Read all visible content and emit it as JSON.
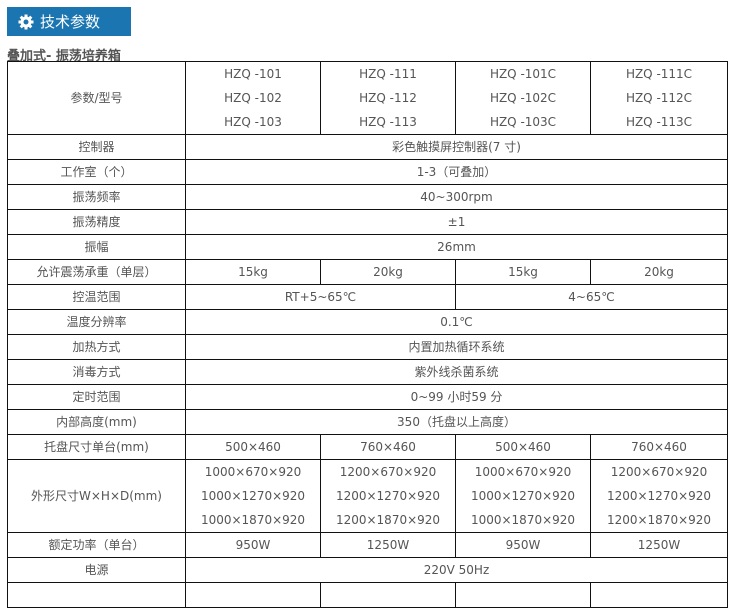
{
  "banner": {
    "title": "技术参数",
    "icon": "gear-icon",
    "color": "#1a75b0"
  },
  "subtitle": "叠加式- 振荡培养箱",
  "header": {
    "label": "参数/型号",
    "models": [
      [
        "HZQ -101",
        "HZQ -102",
        "HZQ -103"
      ],
      [
        "HZQ -111",
        "HZQ -112",
        "HZQ -113"
      ],
      [
        "HZQ -101C",
        "HZQ -102C",
        "HZQ -103C"
      ],
      [
        "HZQ -111C",
        "HZQ -112C",
        "HZQ -113C"
      ]
    ]
  },
  "rows": [
    {
      "label": "控制器",
      "cells": [
        "彩色触摸屏控制器(7 寸)"
      ]
    },
    {
      "label": "工作室（个）",
      "cells": [
        "1-3（可叠加）"
      ]
    },
    {
      "label": "振荡频率",
      "cells": [
        "40~300rpm"
      ]
    },
    {
      "label": "振荡精度",
      "cells": [
        "±1"
      ]
    },
    {
      "label": "振幅",
      "cells": [
        "26mm"
      ]
    },
    {
      "label": "允许震荡承重（单层）",
      "cells": [
        "15kg",
        "20kg",
        "15kg",
        "20kg"
      ]
    },
    {
      "label": "控温范围",
      "cells": [
        "RT+5~65℃",
        "4~65℃"
      ]
    },
    {
      "label": "温度分辨率",
      "cells": [
        "0.1℃"
      ]
    },
    {
      "label": "加热方式",
      "cells": [
        "内置加热循环系统"
      ]
    },
    {
      "label": "消毒方式",
      "cells": [
        "紫外线杀菌系统"
      ]
    },
    {
      "label": "定时范围",
      "cells": [
        "0~99 小时59 分"
      ]
    },
    {
      "label": "内部高度(mm)",
      "cells": [
        "350（托盘以上高度）"
      ]
    },
    {
      "label": "托盘尺寸单台(mm)",
      "cells": [
        "500×460",
        "760×460",
        "500×460",
        "760×460"
      ]
    }
  ],
  "dimensions": {
    "label": "外形尺寸W×H×D(mm)",
    "cells": [
      [
        "1000×670×920",
        "1000×1270×920",
        "1000×1870×920"
      ],
      [
        "1200×670×920",
        "1200×1270×920",
        "1200×1870×920"
      ],
      [
        "1000×670×920",
        "1000×1270×920",
        "1000×1870×920"
      ],
      [
        "1200×670×920",
        "1200×1270×920",
        "1200×1870×920"
      ]
    ]
  },
  "rows2": [
    {
      "label": "额定功率（单台）",
      "cells": [
        "950W",
        "1250W",
        "950W",
        "1250W"
      ]
    },
    {
      "label": "电源",
      "cells": [
        "220V 50Hz"
      ]
    }
  ]
}
